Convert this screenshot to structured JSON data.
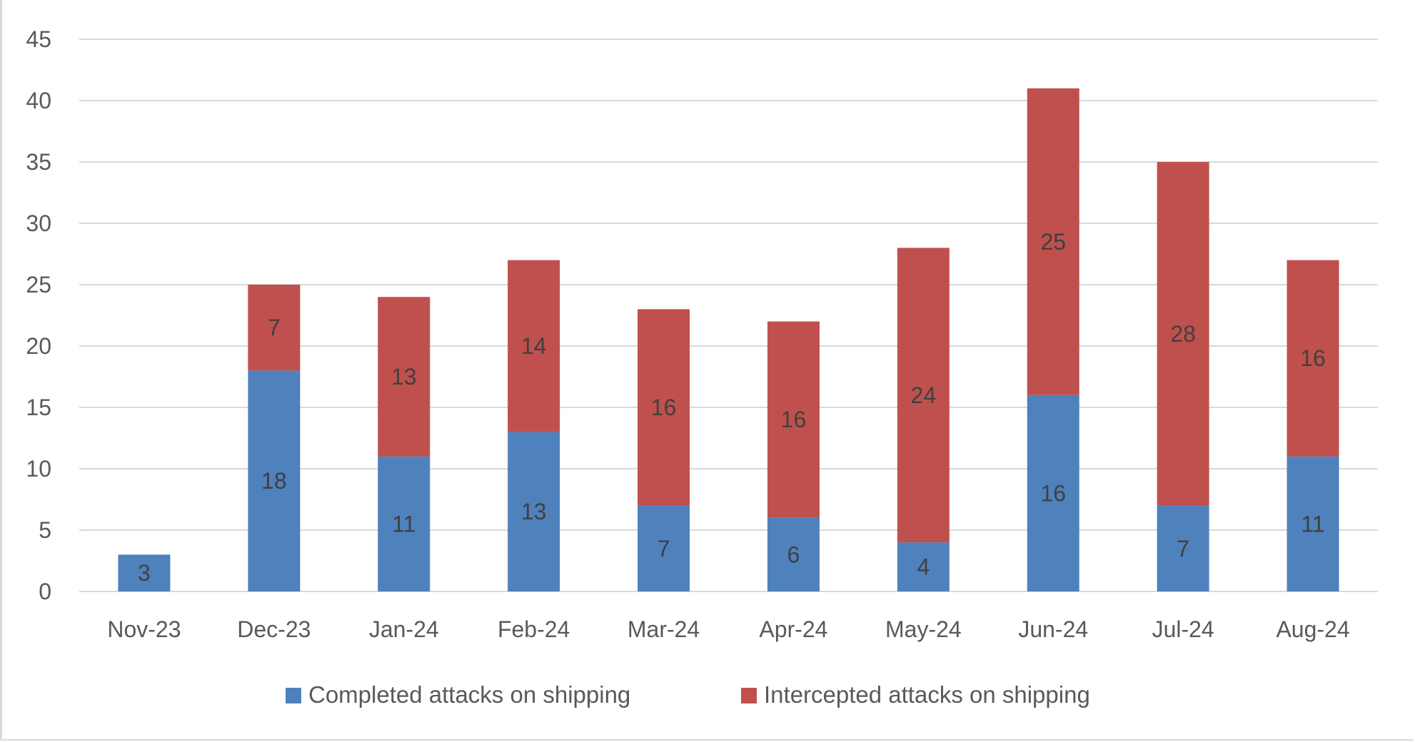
{
  "chart_data": {
    "type": "bar",
    "stacked": true,
    "categories": [
      "Nov-23",
      "Dec-23",
      "Jan-24",
      "Feb-24",
      "Mar-24",
      "Apr-24",
      "May-24",
      "Jun-24",
      "Jul-24",
      "Aug-24"
    ],
    "series": [
      {
        "name": "Completed attacks on shipping",
        "color": "#4F81BD",
        "values": [
          3,
          18,
          11,
          13,
          7,
          6,
          4,
          16,
          7,
          11
        ]
      },
      {
        "name": "Intercepted attacks on shipping",
        "color": "#C0504D",
        "values": [
          0,
          7,
          13,
          14,
          16,
          16,
          24,
          25,
          28,
          16
        ]
      }
    ],
    "ylim": [
      0,
      45
    ],
    "yticks": [
      0,
      5,
      10,
      15,
      20,
      25,
      30,
      35,
      40,
      45
    ],
    "grid": true,
    "data_labels": true,
    "legend": "bottom",
    "title": "",
    "xlabel": "",
    "ylabel": ""
  }
}
